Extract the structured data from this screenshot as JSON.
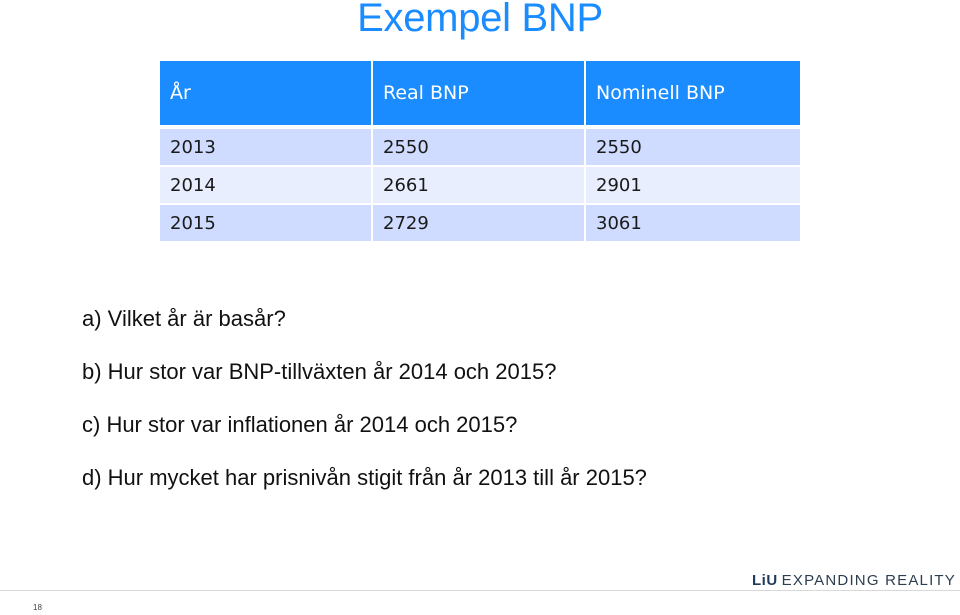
{
  "slide": {
    "title": "Exempel BNP",
    "page_number": "18"
  },
  "table": {
    "headers": [
      "År",
      "Real BNP",
      "Nominell BNP"
    ],
    "rows": [
      [
        "2013",
        "2550",
        "2550"
      ],
      [
        "2014",
        "2661",
        "2901"
      ],
      [
        "2015",
        "2729",
        "3061"
      ]
    ]
  },
  "questions": [
    "a) Vilket år är basår?",
    "b) Hur stor var BNP-tillväxten år 2014 och 2015?",
    "c) Hur stor var inflationen år 2014 och 2015?",
    "d) Hur mycket har prisnivån stigit från år 2013 till år 2015?"
  ],
  "logo": {
    "brand": "LiU",
    "tagline": "EXPANDING REALITY"
  },
  "colors": {
    "accent": "#1a8cff",
    "row_odd": "#cfdcff",
    "row_even": "#e9eeff"
  }
}
